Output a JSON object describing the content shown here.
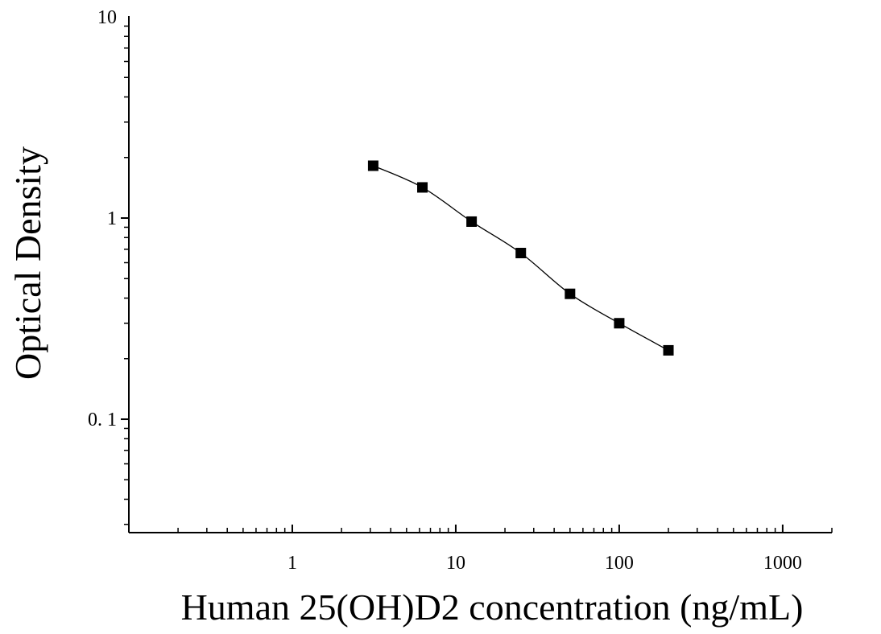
{
  "chart_data": {
    "type": "scatter",
    "title": "",
    "xlabel": "Human 25(OH)D2 concentration (ng/mL)",
    "ylabel": "Optical Density",
    "x_scale": "log",
    "y_scale": "log",
    "xlim": [
      0.1,
      2000
    ],
    "ylim": [
      0.0273,
      10
    ],
    "x_ticks": [
      {
        "value": 1,
        "label": "1"
      },
      {
        "value": 10,
        "label": "10"
      },
      {
        "value": 100,
        "label": "100"
      },
      {
        "value": 1000,
        "label": "1000"
      }
    ],
    "y_ticks": [
      {
        "value": 0.1,
        "label": "0. 1"
      },
      {
        "value": 1,
        "label": "1"
      },
      {
        "value": 10,
        "label": "10"
      }
    ],
    "grid": false,
    "legend": "none",
    "fit_curve": true,
    "marker": "square",
    "color": "#000000",
    "series": [
      {
        "x": [
          3.125,
          6.25,
          12.5,
          25,
          50,
          100,
          200
        ],
        "y": [
          1.82,
          1.42,
          0.96,
          0.67,
          0.42,
          0.3,
          0.22
        ]
      }
    ]
  }
}
